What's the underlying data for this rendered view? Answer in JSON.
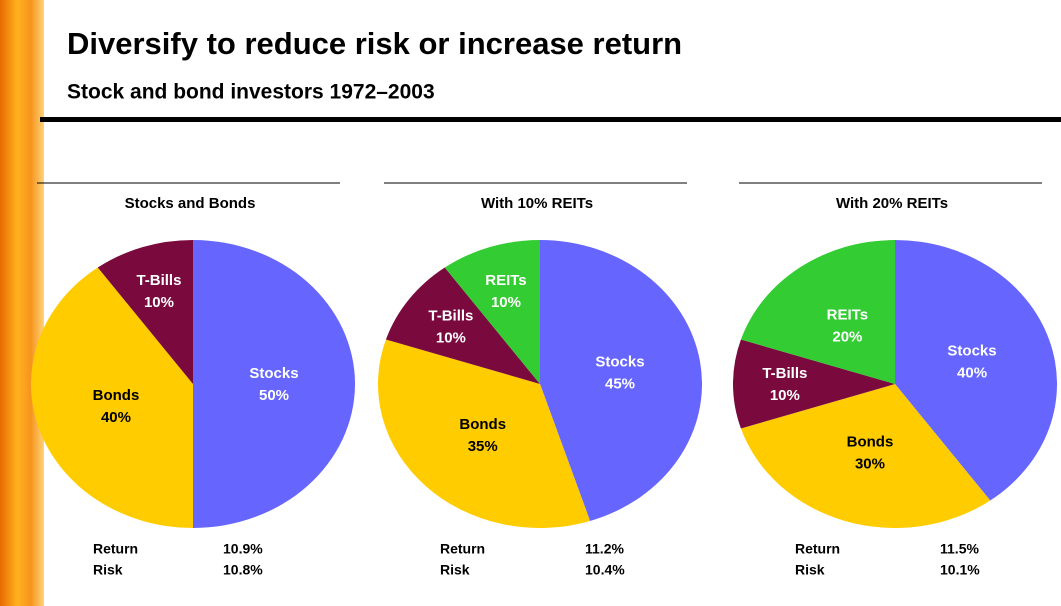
{
  "header": {
    "title": "Diversify to reduce risk or increase return",
    "subtitle": "Stock and bond investors 1972–2003"
  },
  "chart_data": [
    {
      "type": "pie",
      "title": "Stocks and Bonds",
      "categories": [
        "Stocks",
        "Bonds",
        "T-Bills"
      ],
      "values": [
        50,
        40,
        10
      ],
      "value_labels": [
        "50%",
        "40%",
        "10%"
      ],
      "colors": [
        "#6666ff",
        "#ffcc00",
        "#7a0a3e"
      ],
      "label_colors": [
        "#ffffff",
        "#000000",
        "#ffffff"
      ],
      "stats": {
        "labels": [
          "Return",
          "Risk"
        ],
        "values": [
          "10.9%",
          "10.8%"
        ]
      }
    },
    {
      "type": "pie",
      "title": "With 10% REITs",
      "categories": [
        "Stocks",
        "Bonds",
        "T-Bills",
        "REITs"
      ],
      "values": [
        45,
        35,
        10,
        10
      ],
      "value_labels": [
        "45%",
        "35%",
        "10%",
        "10%"
      ],
      "colors": [
        "#6666ff",
        "#ffcc00",
        "#7a0a3e",
        "#33cc33"
      ],
      "label_colors": [
        "#ffffff",
        "#000000",
        "#ffffff",
        "#ffffff"
      ],
      "stats": {
        "labels": [
          "Return",
          "Risk"
        ],
        "values": [
          "11.2%",
          "10.4%"
        ]
      }
    },
    {
      "type": "pie",
      "title": "With 20% REITs",
      "categories": [
        "Stocks",
        "Bonds",
        "T-Bills",
        "REITs"
      ],
      "values": [
        40,
        30,
        10,
        20
      ],
      "value_labels": [
        "40%",
        "30%",
        "10%",
        "20%"
      ],
      "colors": [
        "#6666ff",
        "#ffcc00",
        "#7a0a3e",
        "#33cc33"
      ],
      "label_colors": [
        "#ffffff",
        "#000000",
        "#ffffff",
        "#ffffff"
      ],
      "stats": {
        "labels": [
          "Return",
          "Risk"
        ],
        "values": [
          "11.5%",
          "10.1%"
        ]
      }
    }
  ]
}
